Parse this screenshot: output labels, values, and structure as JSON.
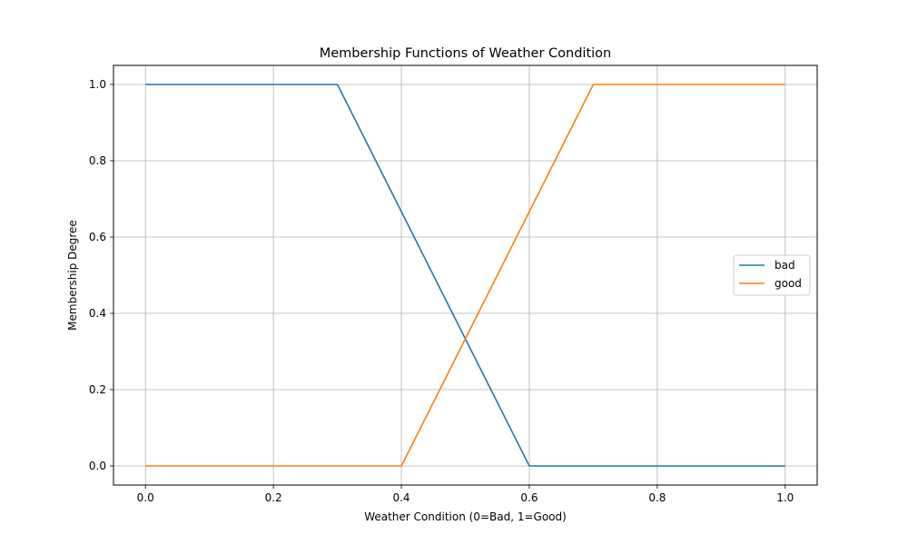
{
  "chart_data": {
    "type": "line",
    "title": "Membership Functions of Weather Condition",
    "xlabel": "Weather Condition (0=Bad, 1=Good)",
    "ylabel": "Membership Degree",
    "xlim": [
      -0.05,
      1.05
    ],
    "ylim": [
      -0.05,
      1.05
    ],
    "xticks": [
      0.0,
      0.2,
      0.4,
      0.6,
      0.8,
      1.0
    ],
    "xtick_labels": [
      "0.0",
      "0.2",
      "0.4",
      "0.6",
      "0.8",
      "1.0"
    ],
    "yticks": [
      0.0,
      0.2,
      0.4,
      0.6,
      0.8,
      1.0
    ],
    "ytick_labels": [
      "0.0",
      "0.2",
      "0.4",
      "0.6",
      "0.8",
      "1.0"
    ],
    "grid": true,
    "legend_position": "center-right",
    "series": [
      {
        "name": "bad",
        "color": "#1f77b4",
        "x": [
          0.0,
          0.3,
          0.6,
          1.0
        ],
        "y": [
          1.0,
          1.0,
          0.0,
          0.0
        ]
      },
      {
        "name": "good",
        "color": "#ff7f0e",
        "x": [
          0.0,
          0.4,
          0.7,
          1.0
        ],
        "y": [
          0.0,
          0.0,
          1.0,
          1.0
        ]
      }
    ]
  }
}
